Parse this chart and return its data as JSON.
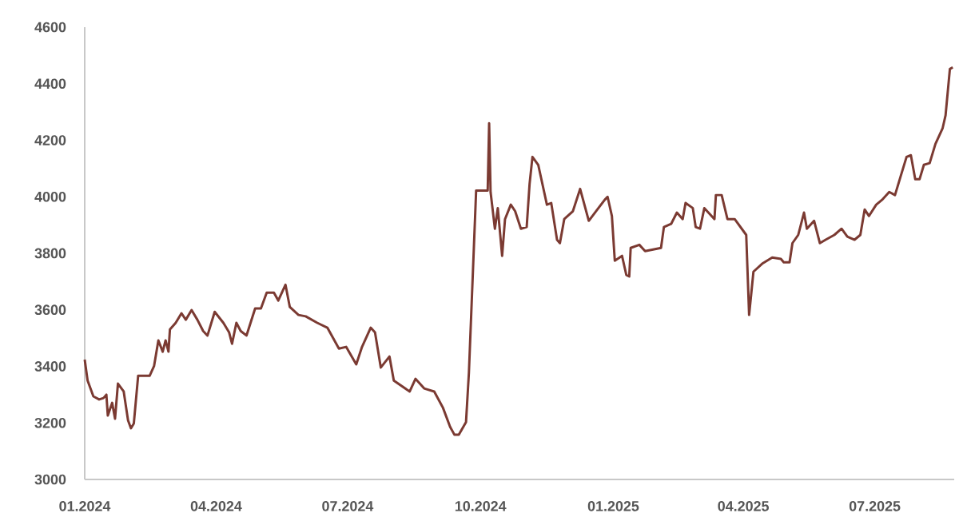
{
  "chart_data": {
    "type": "line",
    "x": [
      "2024-01-01",
      "2024-01-03",
      "2024-01-07",
      "2024-01-11",
      "2024-01-14",
      "2024-01-16",
      "2024-01-17",
      "2024-01-20",
      "2024-01-22",
      "2024-01-24",
      "2024-01-28",
      "2024-01-31",
      "2024-02-02",
      "2024-02-04",
      "2024-02-07",
      "2024-02-15",
      "2024-02-18",
      "2024-02-21",
      "2024-02-24",
      "2024-02-26",
      "2024-02-28",
      "2024-02-29",
      "2024-03-04",
      "2024-03-08",
      "2024-03-11",
      "2024-03-15",
      "2024-03-19",
      "2024-03-23",
      "2024-03-26",
      "2024-03-31",
      "2024-04-06",
      "2024-04-10",
      "2024-04-12",
      "2024-04-15",
      "2024-04-18",
      "2024-04-22",
      "2024-04-28",
      "2024-05-02",
      "2024-05-06",
      "2024-05-11",
      "2024-05-14",
      "2024-05-19",
      "2024-05-22",
      "2024-05-28",
      "2024-06-02",
      "2024-06-10",
      "2024-06-17",
      "2024-06-25",
      "2024-06-30",
      "2024-07-07",
      "2024-07-11",
      "2024-07-17",
      "2024-07-20",
      "2024-07-24",
      "2024-07-30",
      "2024-08-02",
      "2024-08-13",
      "2024-08-17",
      "2024-08-23",
      "2024-08-30",
      "2024-09-05",
      "2024-09-10",
      "2024-09-13",
      "2024-09-16",
      "2024-09-21",
      "2024-09-23",
      "2024-09-28",
      "2024-10-06",
      "2024-10-07",
      "2024-10-08",
      "2024-10-11",
      "2024-10-13",
      "2024-10-16",
      "2024-10-18",
      "2024-10-22",
      "2024-10-25",
      "2024-10-29",
      "2024-11-02",
      "2024-11-04",
      "2024-11-06",
      "2024-11-10",
      "2024-11-16",
      "2024-11-19",
      "2024-11-23",
      "2024-11-25",
      "2024-11-28",
      "2024-12-04",
      "2024-12-09",
      "2024-12-15",
      "2024-12-20",
      "2024-12-26",
      "2024-12-28",
      "2024-12-31",
      "2025-01-02",
      "2025-01-07",
      "2025-01-10",
      "2025-01-12",
      "2025-01-13",
      "2025-01-19",
      "2025-01-23",
      "2025-02-03",
      "2025-02-05",
      "2025-02-10",
      "2025-02-14",
      "2025-02-18",
      "2025-02-20",
      "2025-02-25",
      "2025-02-27",
      "2025-03-02",
      "2025-03-05",
      "2025-03-12",
      "2025-03-13",
      "2025-03-17",
      "2025-03-21",
      "2025-03-26",
      "2025-04-03",
      "2025-04-05",
      "2025-04-08",
      "2025-04-14",
      "2025-04-21",
      "2025-04-27",
      "2025-04-29",
      "2025-05-03",
      "2025-05-05",
      "2025-05-09",
      "2025-05-13",
      "2025-05-15",
      "2025-05-20",
      "2025-05-24",
      "2025-05-28",
      "2025-06-03",
      "2025-06-08",
      "2025-06-12",
      "2025-06-17",
      "2025-06-21",
      "2025-06-24",
      "2025-06-27",
      "2025-07-02",
      "2025-07-06",
      "2025-07-11",
      "2025-07-15",
      "2025-07-19",
      "2025-07-23",
      "2025-07-26",
      "2025-07-29",
      "2025-08-01",
      "2025-08-04",
      "2025-08-08",
      "2025-08-12",
      "2025-08-17",
      "2025-08-19",
      "2025-08-22",
      "2025-08-24"
    ],
    "series": [
      {
        "color": "#7b3a32",
        "values": [
          3424,
          3350,
          3294,
          3283,
          3288,
          3300,
          3226,
          3271,
          3215,
          3339,
          3311,
          3209,
          3181,
          3198,
          3367,
          3367,
          3401,
          3492,
          3452,
          3492,
          3452,
          3531,
          3554,
          3588,
          3565,
          3599,
          3565,
          3525,
          3509,
          3593,
          3554,
          3520,
          3480,
          3554,
          3525,
          3509,
          3605,
          3605,
          3661,
          3661,
          3633,
          3689,
          3610,
          3582,
          3577,
          3554,
          3537,
          3463,
          3469,
          3407,
          3469,
          3537,
          3520,
          3396,
          3435,
          3350,
          3311,
          3356,
          3322,
          3311,
          3254,
          3186,
          3158,
          3158,
          3203,
          3378,
          4022,
          4022,
          4260,
          4017,
          3887,
          3960,
          3791,
          3921,
          3972,
          3949,
          3887,
          3893,
          4045,
          4141,
          4113,
          3972,
          3978,
          3848,
          3836,
          3921,
          3949,
          4028,
          3915,
          3949,
          3989,
          4000,
          3932,
          3774,
          3791,
          3723,
          3718,
          3819,
          3830,
          3808,
          3819,
          3893,
          3904,
          3944,
          3921,
          3978,
          3960,
          3893,
          3887,
          3960,
          3921,
          4006,
          4006,
          3921,
          3921,
          3865,
          3582,
          3735,
          3763,
          3785,
          3780,
          3768,
          3768,
          3836,
          3865,
          3944,
          3887,
          3915,
          3836,
          3848,
          3865,
          3887,
          3859,
          3848,
          3865,
          3955,
          3932,
          3972,
          3989,
          4017,
          4006,
          4074,
          4141,
          4147,
          4062,
          4062,
          4113,
          4119,
          4187,
          4243,
          4288,
          4452,
          4458
        ]
      }
    ],
    "xlim": [
      "2024-01-01",
      "2025-08-25"
    ],
    "ylim": [
      3000,
      4600
    ],
    "xticks": [
      {
        "value": "2024-01-01",
        "label": "01.2024"
      },
      {
        "value": "2024-04-01",
        "label": "04.2024"
      },
      {
        "value": "2024-07-01",
        "label": "07.2024"
      },
      {
        "value": "2024-10-01",
        "label": "10.2024"
      },
      {
        "value": "2025-01-01",
        "label": "01.2025"
      },
      {
        "value": "2025-04-01",
        "label": "04.2025"
      },
      {
        "value": "2025-07-01",
        "label": "07.2025"
      }
    ],
    "yticks": [
      3000,
      3200,
      3400,
      3600,
      3800,
      4000,
      4200,
      4400,
      4600
    ],
    "line_style": "solid"
  }
}
